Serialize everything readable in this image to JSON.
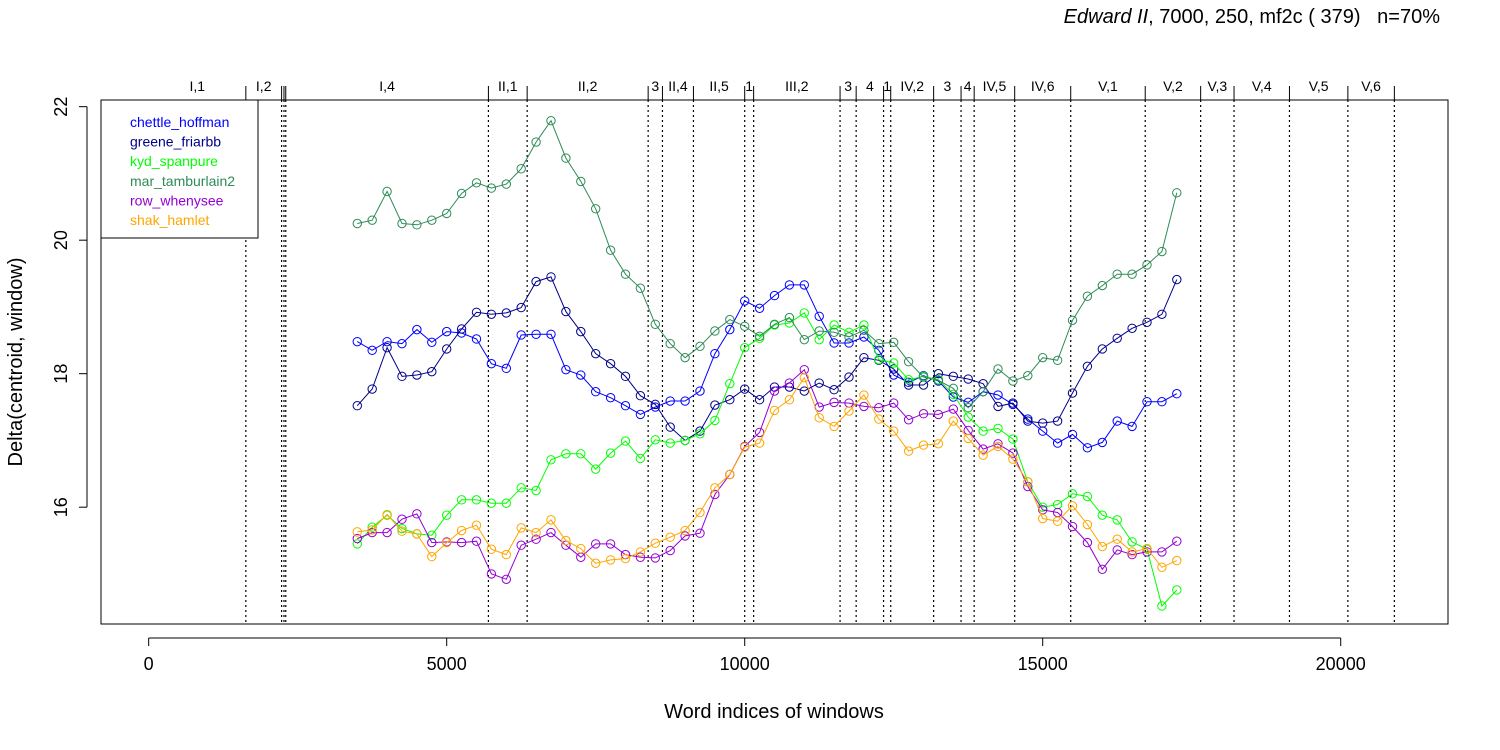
{
  "chart_data": {
    "type": "line",
    "title_italic": "Edward II",
    "title_rest": ", 7000, 250, mf2c ( 379)   n=70%",
    "xlabel": "Word indices of windows",
    "ylabel": "Delta(centroid, window)",
    "xlim": [
      -800,
      21800
    ],
    "ylim": [
      14.25,
      22.1
    ],
    "xticks": [
      0,
      5000,
      10000,
      15000,
      20000
    ],
    "xtick_labels": [
      "0",
      "5000",
      "10000",
      "15000",
      "20000"
    ],
    "yticks": [
      16,
      18,
      20,
      22
    ],
    "ytick_labels": [
      "16",
      "18",
      "20",
      "22"
    ],
    "legend_position": "top-left",
    "scenes": [
      {
        "label": "I,1",
        "start": 0,
        "end": 1630
      },
      {
        "label": "I,2",
        "start": 1630,
        "end": 2230
      },
      {
        "label": "",
        "start": 2230,
        "end": 2270
      },
      {
        "label": "",
        "start": 2270,
        "end": 2300
      },
      {
        "label": "I,4",
        "start": 2300,
        "end": 5700
      },
      {
        "label": "II,1",
        "start": 5700,
        "end": 6350
      },
      {
        "label": "II,2",
        "start": 6350,
        "end": 8380
      },
      {
        "label": "3",
        "start": 8380,
        "end": 8620
      },
      {
        "label": "II,4",
        "start": 8620,
        "end": 9140
      },
      {
        "label": "II,5",
        "start": 9140,
        "end": 10000
      },
      {
        "label": "1",
        "start": 10000,
        "end": 10150
      },
      {
        "label": "III,2",
        "start": 10150,
        "end": 11600
      },
      {
        "label": "3",
        "start": 11600,
        "end": 11870
      },
      {
        "label": "4",
        "start": 11870,
        "end": 12330
      },
      {
        "label": "1",
        "start": 12330,
        "end": 12450
      },
      {
        "label": "IV,2",
        "start": 12450,
        "end": 13170
      },
      {
        "label": "3",
        "start": 13170,
        "end": 13630
      },
      {
        "label": "4",
        "start": 13630,
        "end": 13850
      },
      {
        "label": "IV,5",
        "start": 13850,
        "end": 14530
      },
      {
        "label": "IV,6",
        "start": 14530,
        "end": 15470
      },
      {
        "label": "V,1",
        "start": 15470,
        "end": 16720
      },
      {
        "label": "V,2",
        "start": 16720,
        "end": 17650
      },
      {
        "label": "V,3",
        "start": 17650,
        "end": 18210
      },
      {
        "label": "V,4",
        "start": 18210,
        "end": 19140
      },
      {
        "label": "V,5",
        "start": 19140,
        "end": 20120
      },
      {
        "label": "V,6",
        "start": 20120,
        "end": 20900
      }
    ],
    "x": [
      3500,
      3750,
      4000,
      4250,
      4500,
      4750,
      5000,
      5250,
      5500,
      5750,
      6000,
      6250,
      6500,
      6750,
      7000,
      7250,
      7500,
      7750,
      8000,
      8250,
      8500,
      8750,
      9000,
      9250,
      9500,
      9750,
      10000,
      10250,
      10500,
      10750,
      11000,
      11250,
      11500,
      11750,
      12000,
      12250,
      12500,
      12750,
      13000,
      13250,
      13500,
      13750,
      14000,
      14250,
      14500,
      14750,
      15000,
      15250,
      15500,
      15750,
      16000,
      16250,
      16500,
      16750,
      17000,
      17250
    ],
    "series": [
      {
        "name": "chettle_hoffman",
        "color": "#0000FF",
        "values": [
          18.48,
          18.35,
          18.48,
          18.45,
          18.66,
          18.47,
          18.63,
          18.61,
          18.52,
          18.15,
          18.08,
          18.58,
          18.59,
          18.59,
          18.06,
          17.98,
          17.73,
          17.64,
          17.52,
          17.39,
          17.5,
          17.59,
          17.59,
          17.74,
          18.3,
          18.66,
          19.09,
          18.98,
          19.17,
          19.33,
          19.33,
          18.86,
          18.46,
          18.46,
          18.55,
          18.35,
          17.98,
          17.87,
          17.97,
          17.89,
          17.65,
          17.57,
          17.73,
          17.68,
          17.54,
          17.32,
          17.14,
          16.96,
          17.09,
          16.89,
          16.97,
          17.29,
          17.21,
          17.58,
          17.58,
          17.7
        ]
      },
      {
        "name": "greene_friarbb",
        "color": "#00008B",
        "values": [
          17.52,
          17.77,
          18.39,
          17.96,
          17.98,
          18.03,
          18.37,
          18.67,
          18.92,
          18.89,
          18.91,
          18.99,
          19.38,
          19.45,
          18.93,
          18.63,
          18.3,
          18.15,
          17.96,
          17.67,
          17.54,
          17.2,
          17.0,
          17.14,
          17.53,
          17.61,
          17.77,
          17.61,
          17.8,
          17.8,
          17.74,
          17.86,
          17.76,
          17.95,
          18.24,
          18.2,
          18.07,
          17.83,
          17.83,
          18.0,
          17.96,
          17.92,
          17.85,
          17.51,
          17.56,
          17.29,
          17.26,
          17.29,
          17.71,
          18.11,
          18.37,
          18.53,
          18.68,
          18.77,
          18.89,
          19.41
        ]
      },
      {
        "name": "kyd_spanpure",
        "color": "#00FF00",
        "values": [
          15.45,
          15.7,
          15.88,
          15.68,
          15.6,
          15.58,
          15.88,
          16.11,
          16.11,
          16.06,
          16.06,
          16.29,
          16.25,
          16.71,
          16.8,
          16.8,
          16.57,
          16.81,
          16.99,
          16.73,
          17.01,
          16.96,
          17.0,
          17.1,
          17.3,
          17.85,
          18.39,
          18.53,
          18.73,
          18.76,
          18.91,
          18.51,
          18.73,
          18.62,
          18.73,
          18.21,
          18.16,
          17.91,
          17.96,
          17.91,
          17.69,
          17.35,
          17.14,
          17.18,
          17.02,
          16.38,
          16.0,
          16.04,
          16.2,
          16.16,
          15.88,
          15.81,
          15.48,
          15.37,
          14.52,
          14.76
        ]
      },
      {
        "name": "mar_tamburlain2",
        "color": "#2E8B57",
        "values": [
          20.25,
          20.3,
          20.73,
          20.25,
          20.23,
          20.3,
          20.4,
          20.7,
          20.86,
          20.78,
          20.84,
          21.07,
          21.47,
          21.79,
          21.23,
          20.88,
          20.47,
          19.85,
          19.49,
          19.28,
          18.74,
          18.45,
          18.24,
          18.41,
          18.64,
          18.81,
          18.71,
          18.56,
          18.74,
          18.84,
          18.51,
          18.64,
          18.62,
          18.55,
          18.65,
          18.45,
          18.47,
          18.18,
          17.95,
          17.9,
          17.78,
          17.49,
          17.73,
          18.07,
          17.89,
          17.97,
          18.24,
          18.2,
          18.8,
          19.16,
          19.32,
          19.49,
          19.49,
          19.63,
          19.83,
          20.71
        ]
      },
      {
        "name": "row_whenysee",
        "color": "#9400D3",
        "values": [
          15.53,
          15.62,
          15.62,
          15.82,
          15.9,
          15.47,
          15.48,
          15.47,
          15.49,
          15.0,
          14.92,
          15.43,
          15.52,
          15.62,
          15.43,
          15.25,
          15.45,
          15.45,
          15.29,
          15.25,
          15.24,
          15.35,
          15.57,
          15.61,
          16.19,
          16.49,
          16.91,
          17.12,
          17.74,
          17.86,
          18.06,
          17.5,
          17.57,
          17.56,
          17.51,
          17.49,
          17.56,
          17.31,
          17.4,
          17.39,
          17.47,
          17.15,
          16.87,
          16.95,
          16.81,
          16.31,
          15.96,
          15.92,
          15.71,
          15.47,
          15.07,
          15.36,
          15.29,
          15.33,
          15.33,
          15.49
        ]
      },
      {
        "name": "shak_hamlet",
        "color": "#FFA500",
        "values": [
          15.63,
          15.66,
          15.89,
          15.64,
          15.6,
          15.26,
          15.47,
          15.65,
          15.73,
          15.37,
          15.29,
          15.69,
          15.62,
          15.81,
          15.5,
          15.38,
          15.16,
          15.21,
          15.23,
          15.33,
          15.46,
          15.55,
          15.65,
          15.92,
          16.29,
          16.49,
          16.9,
          16.96,
          17.45,
          17.61,
          17.94,
          17.34,
          17.21,
          17.44,
          17.68,
          17.32,
          17.14,
          16.84,
          16.93,
          16.95,
          17.29,
          17.03,
          16.78,
          16.91,
          16.72,
          16.38,
          15.83,
          15.79,
          16.02,
          15.74,
          15.41,
          15.52,
          15.33,
          15.38,
          15.1,
          15.2
        ]
      }
    ]
  }
}
